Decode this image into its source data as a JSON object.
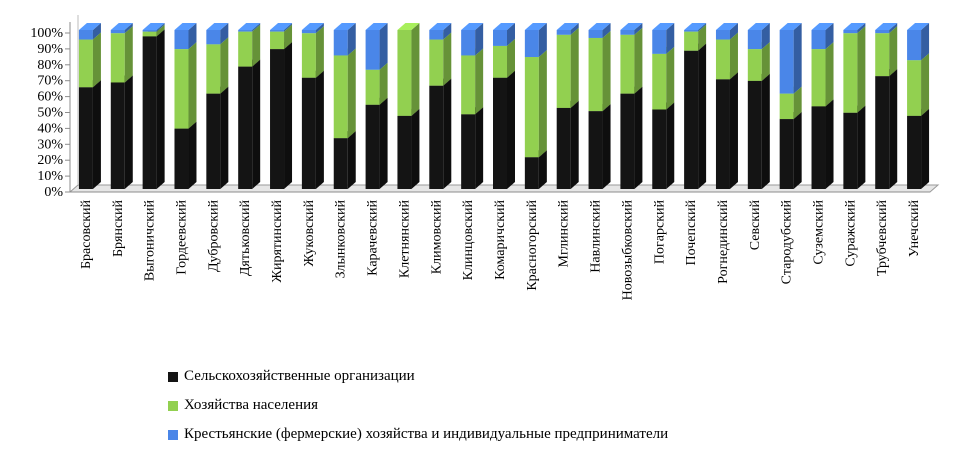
{
  "chart_data": {
    "type": "bar",
    "stacked": true,
    "percent": true,
    "three_d": true,
    "grid": false,
    "legend_position": "bottom",
    "ylim": [
      0,
      100
    ],
    "yticks": [
      "0%",
      "10%",
      "20%",
      "30%",
      "40%",
      "50%",
      "60%",
      "70%",
      "80%",
      "90%",
      "100%"
    ],
    "categories": [
      "Брасовский",
      "Брянский",
      "Выгоничский",
      "Гордеевский",
      "Дубровский",
      "Дятьковский",
      "Жирятинский",
      "Жуковский",
      "Злынковский",
      "Карачевский",
      "Клетнянский",
      "Климовский",
      "Клинцовский",
      "Комаричский",
      "Красногорский",
      "Мглинский",
      "Навлинский",
      "Новозыбковский",
      "Погарский",
      "Почепский",
      "Рогнединский",
      "Севский",
      "Стародубский",
      "Суземский",
      "Суражский",
      "Трубчевский",
      "Унечский"
    ],
    "series": [
      {
        "name": "Сельскохозяйственные организации",
        "color": "#141414",
        "values": [
          64,
          67,
          96,
          38,
          60,
          77,
          88,
          70,
          32,
          53,
          46,
          65,
          47,
          70,
          20,
          51,
          49,
          60,
          50,
          87,
          69,
          68,
          44,
          52,
          48,
          71,
          46
        ]
      },
      {
        "name": "Хозяйства населения",
        "color": "#92D050",
        "values": [
          30,
          31,
          3,
          50,
          31,
          22,
          11,
          28,
          52,
          22,
          54,
          29,
          37,
          20,
          63,
          46,
          46,
          37,
          35,
          12,
          25,
          20,
          16,
          36,
          50,
          27,
          35
        ]
      },
      {
        "name": "Крестьянские (фермерские) хозяйства и индивидуальные предприниматели",
        "color": "#4A86E8",
        "values": [
          6,
          2,
          1,
          12,
          9,
          1,
          1,
          2,
          16,
          25,
          0,
          6,
          16,
          10,
          17,
          3,
          5,
          3,
          15,
          1,
          6,
          12,
          40,
          12,
          2,
          2,
          19
        ]
      }
    ]
  }
}
